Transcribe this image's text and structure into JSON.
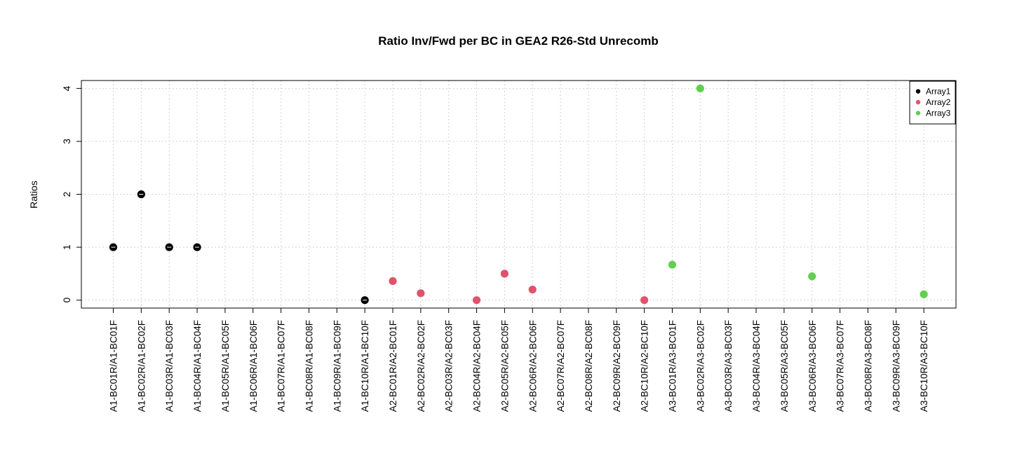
{
  "chart_data": {
    "type": "scatter",
    "title": "Ratio Inv/Fwd per BC in GEA2 R26-Std Unrecomb",
    "ylabel": "Ratios",
    "xlabel": "",
    "ylim": [
      -0.15,
      4.15
    ],
    "y_ticks": [
      0,
      1,
      2,
      3,
      4
    ],
    "grid": true,
    "legend_position": "top-right",
    "categories": [
      "A1-BC01R/A1-BC01F",
      "A1-BC02R/A1-BC02F",
      "A1-BC03R/A1-BC03F",
      "A1-BC04R/A1-BC04F",
      "A1-BC05R/A1-BC05F",
      "A1-BC06R/A1-BC06F",
      "A1-BC07R/A1-BC07F",
      "A1-BC08R/A1-BC08F",
      "A1-BC09R/A1-BC09F",
      "A1-BC10R/A1-BC10F",
      "A2-BC01R/A2-BC01F",
      "A2-BC02R/A2-BC02F",
      "A2-BC03R/A2-BC03F",
      "A2-BC04R/A2-BC04F",
      "A2-BC05R/A2-BC05F",
      "A2-BC06R/A2-BC06F",
      "A2-BC07R/A2-BC07F",
      "A2-BC08R/A2-BC08F",
      "A2-BC09R/A2-BC09F",
      "A2-BC10R/A2-BC10F",
      "A3-BC01R/A3-BC01F",
      "A3-BC02R/A3-BC02F",
      "A3-BC03R/A3-BC03F",
      "A3-BC04R/A3-BC04F",
      "A3-BC05R/A3-BC05F",
      "A3-BC06R/A3-BC06F",
      "A3-BC07R/A3-BC07F",
      "A3-BC08R/A3-BC08F",
      "A3-BC09R/A3-BC09F",
      "A3-BC10R/A3-BC10F"
    ],
    "series": [
      {
        "name": "Array1",
        "color": "#000000",
        "values": [
          1,
          2,
          1,
          1,
          null,
          null,
          null,
          null,
          null,
          0
        ]
      },
      {
        "name": "Array2",
        "color": "#DF536B",
        "values": [
          0.36,
          0.13,
          null,
          0,
          0.5,
          0.2,
          null,
          null,
          null,
          0
        ]
      },
      {
        "name": "Array3",
        "color": "#61D04F",
        "values": [
          0.67,
          4,
          null,
          null,
          null,
          0.45,
          null,
          null,
          null,
          0.11
        ]
      }
    ]
  }
}
